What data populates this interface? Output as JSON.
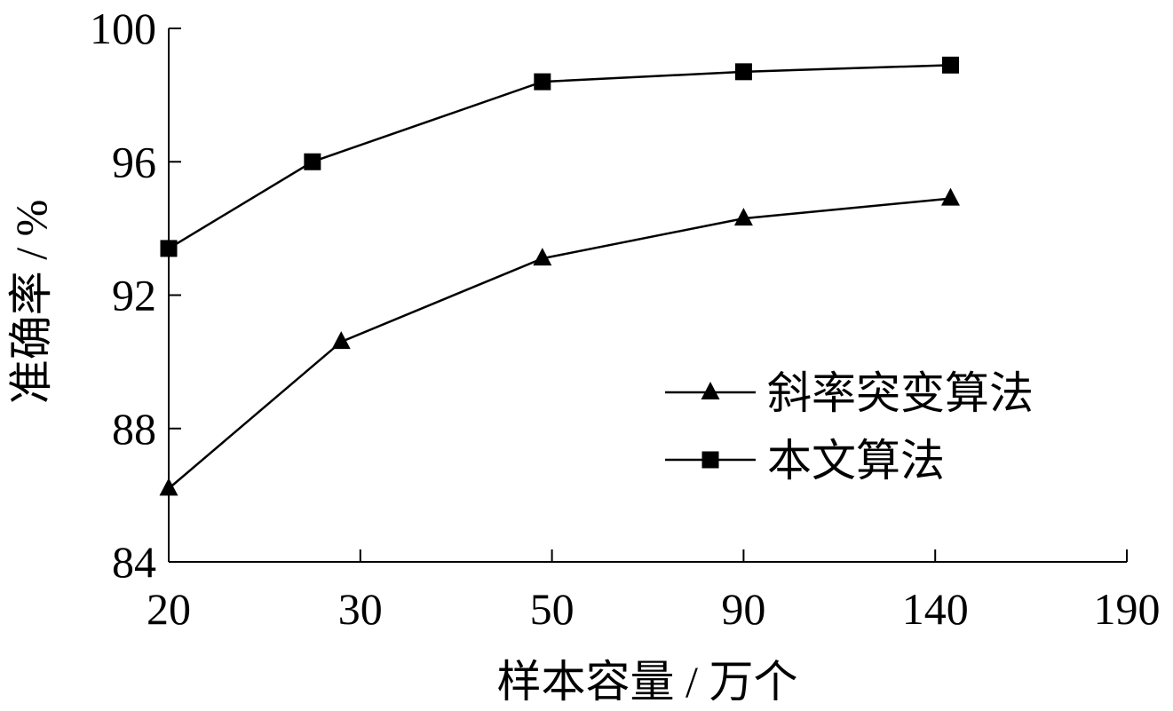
{
  "chart_data": {
    "type": "line",
    "title": "",
    "xlabel": "样本容量 / 万个",
    "ylabel": "准确率 / %",
    "x_ticks": [
      "20",
      "30",
      "50",
      "90",
      "140",
      "190"
    ],
    "ylim": [
      84,
      100
    ],
    "y_ticks": [
      "84",
      "88",
      "92",
      "96",
      "100"
    ],
    "grid": false,
    "legend_position": "lower-right",
    "colors": {
      "line": "#000000",
      "background": "#ffffff"
    },
    "series": [
      {
        "name": "斜率突变算法",
        "marker": "triangle",
        "x": [
          20,
          29,
          49,
          90,
          144
        ],
        "y": [
          86.2,
          90.6,
          93.1,
          94.3,
          94.9
        ]
      },
      {
        "name": "本文算法",
        "marker": "square",
        "x": [
          20,
          27.5,
          49,
          90,
          144
        ],
        "y": [
          93.4,
          96.0,
          98.4,
          98.7,
          98.9
        ]
      }
    ]
  }
}
